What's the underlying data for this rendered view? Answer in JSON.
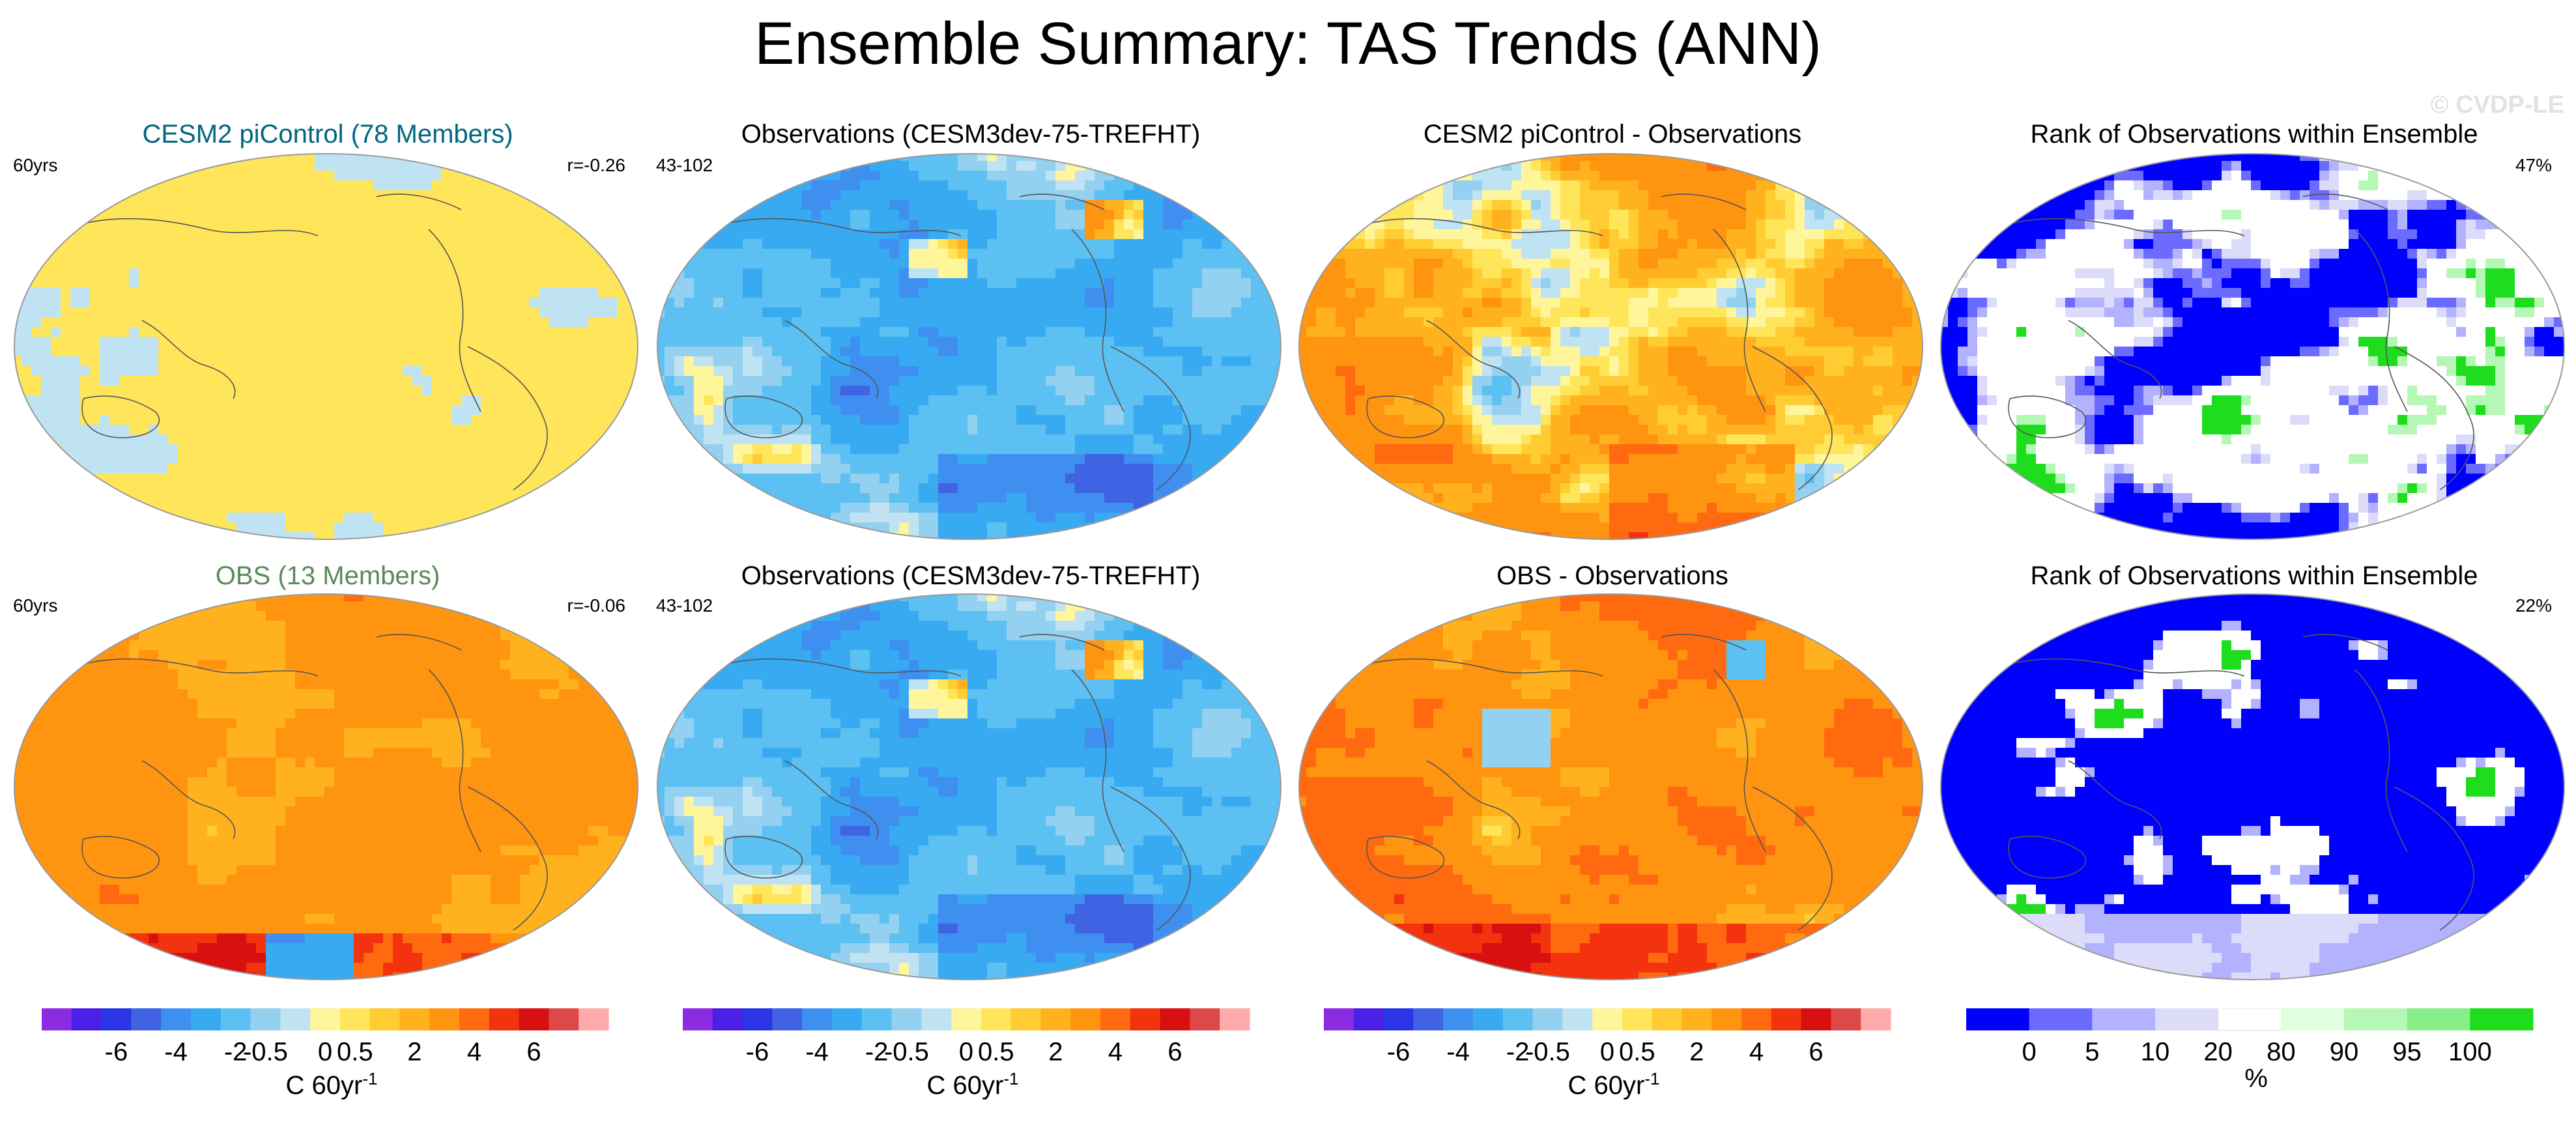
{
  "title": "Ensemble Summary: TAS Trends (ANN)",
  "watermark": "© CVDP-LE",
  "panels": [
    {
      "title": "CESM2 piControl (78 Members)",
      "title_color": "#006680",
      "left_text": "60yrs",
      "right_text": "r=-0.26",
      "pattern": "control",
      "cmap": "diverging"
    },
    {
      "title": "Observations (CESM3dev-75-TREFHT)",
      "title_color": "#000000",
      "left_text": "43-102",
      "right_text": "",
      "pattern": "observations",
      "cmap": "diverging"
    },
    {
      "title": "CESM2 piControl - Observations",
      "title_color": "#000000",
      "left_text": "",
      "right_text": "",
      "pattern": "diff1",
      "cmap": "diverging"
    },
    {
      "title": "Rank of Observations within Ensemble",
      "title_color": "#000000",
      "left_text": "",
      "right_text": "47%",
      "pattern": "rank1",
      "cmap": "rank"
    },
    {
      "title": "OBS (13 Members)",
      "title_color": "#5a8a5a",
      "left_text": "60yrs",
      "right_text": "r=-0.06",
      "pattern": "obs_ens",
      "cmap": "diverging"
    },
    {
      "title": "Observations (CESM3dev-75-TREFHT)",
      "title_color": "#000000",
      "left_text": "43-102",
      "right_text": "",
      "pattern": "observations",
      "cmap": "diverging"
    },
    {
      "title": "OBS - Observations",
      "title_color": "#000000",
      "left_text": "",
      "right_text": "",
      "pattern": "diff2",
      "cmap": "diverging"
    },
    {
      "title": "Rank of Observations within Ensemble",
      "title_color": "#000000",
      "left_text": "",
      "right_text": "22%",
      "pattern": "rank2",
      "cmap": "rank"
    }
  ],
  "colorbars": [
    {
      "type": "diverging",
      "ticks": [
        "-6",
        "-4",
        "-2",
        "-0.5",
        "0",
        "0.5",
        "2",
        "4",
        "6"
      ],
      "label": "C 60yr",
      "label_sup": "-1"
    },
    {
      "type": "diverging",
      "ticks": [
        "-6",
        "-4",
        "-2",
        "-0.5",
        "0",
        "0.5",
        "2",
        "4",
        "6"
      ],
      "label": "C 60yr",
      "label_sup": "-1"
    },
    {
      "type": "diverging",
      "ticks": [
        "-6",
        "-4",
        "-2",
        "-0.5",
        "0",
        "0.5",
        "2",
        "4",
        "6"
      ],
      "label": "C 60yr",
      "label_sup": "-1"
    },
    {
      "type": "rank",
      "ticks": [
        "0",
        "5",
        "10",
        "20",
        "80",
        "90",
        "95",
        "100"
      ],
      "label": "%",
      "label_sup": ""
    }
  ],
  "chart_data": {
    "type": "heatmap",
    "title": "Ensemble Summary: TAS Trends (ANN)",
    "projection": "Robinson (Pacific-centered global maps)",
    "diverging_levels": [
      -6,
      -5,
      -4,
      -3,
      -2,
      -1,
      -0.5,
      -0.25,
      0,
      0.25,
      0.5,
      1,
      2,
      3,
      4,
      5,
      6
    ],
    "diverging_colors": [
      "#8b2be2",
      "#4b1fe6",
      "#2a35e8",
      "#3f63e2",
      "#3f8ff0",
      "#38aaf2",
      "#5cc0f2",
      "#94d0ef",
      "#bfe3f2",
      "#fff59b",
      "#ffe55a",
      "#ffcc33",
      "#ffb21e",
      "#ff9411",
      "#ff6a10",
      "#f2330e",
      "#d81010",
      "#dd4848",
      "#ffaaaa"
    ],
    "rank_levels": [
      0,
      5,
      10,
      20,
      80,
      90,
      95,
      100
    ],
    "rank_colors": [
      "#0000ff",
      "#6b6bff",
      "#b2b2ff",
      "#dcdcfa",
      "#ffffff",
      "#dfffdf",
      "#b5f7b5",
      "#88ee88",
      "#1ddd1d"
    ],
    "units": "C 60yr-1",
    "rank_units": "%",
    "panels_summary": [
      {
        "panel": "CESM2 piControl (78 Members)",
        "period": "60yrs",
        "pattern_correlation": -0.26,
        "dominant": "near zero (0 to 0.25)"
      },
      {
        "panel": "Observations (CESM3dev-75-TREFHT)",
        "period": "43-102",
        "dominant": "mixed cooling and warming"
      },
      {
        "panel": "CESM2 piControl - Observations",
        "dominant": "mostly positive difference"
      },
      {
        "panel": "Rank of Observations within Ensemble (top)",
        "percent_outside": 47
      },
      {
        "panel": "OBS (13 Members)",
        "period": "60yrs",
        "pattern_correlation": -0.06,
        "dominant": "warming (0.5 to 2)"
      },
      {
        "panel": "Observations (CESM3dev-75-TREFHT)",
        "period": "43-102",
        "dominant": "mixed cooling and warming"
      },
      {
        "panel": "OBS - Observations",
        "dominant": "mostly positive difference"
      },
      {
        "panel": "Rank of Observations within Ensemble (bottom)",
        "percent_outside": 22
      }
    ]
  }
}
